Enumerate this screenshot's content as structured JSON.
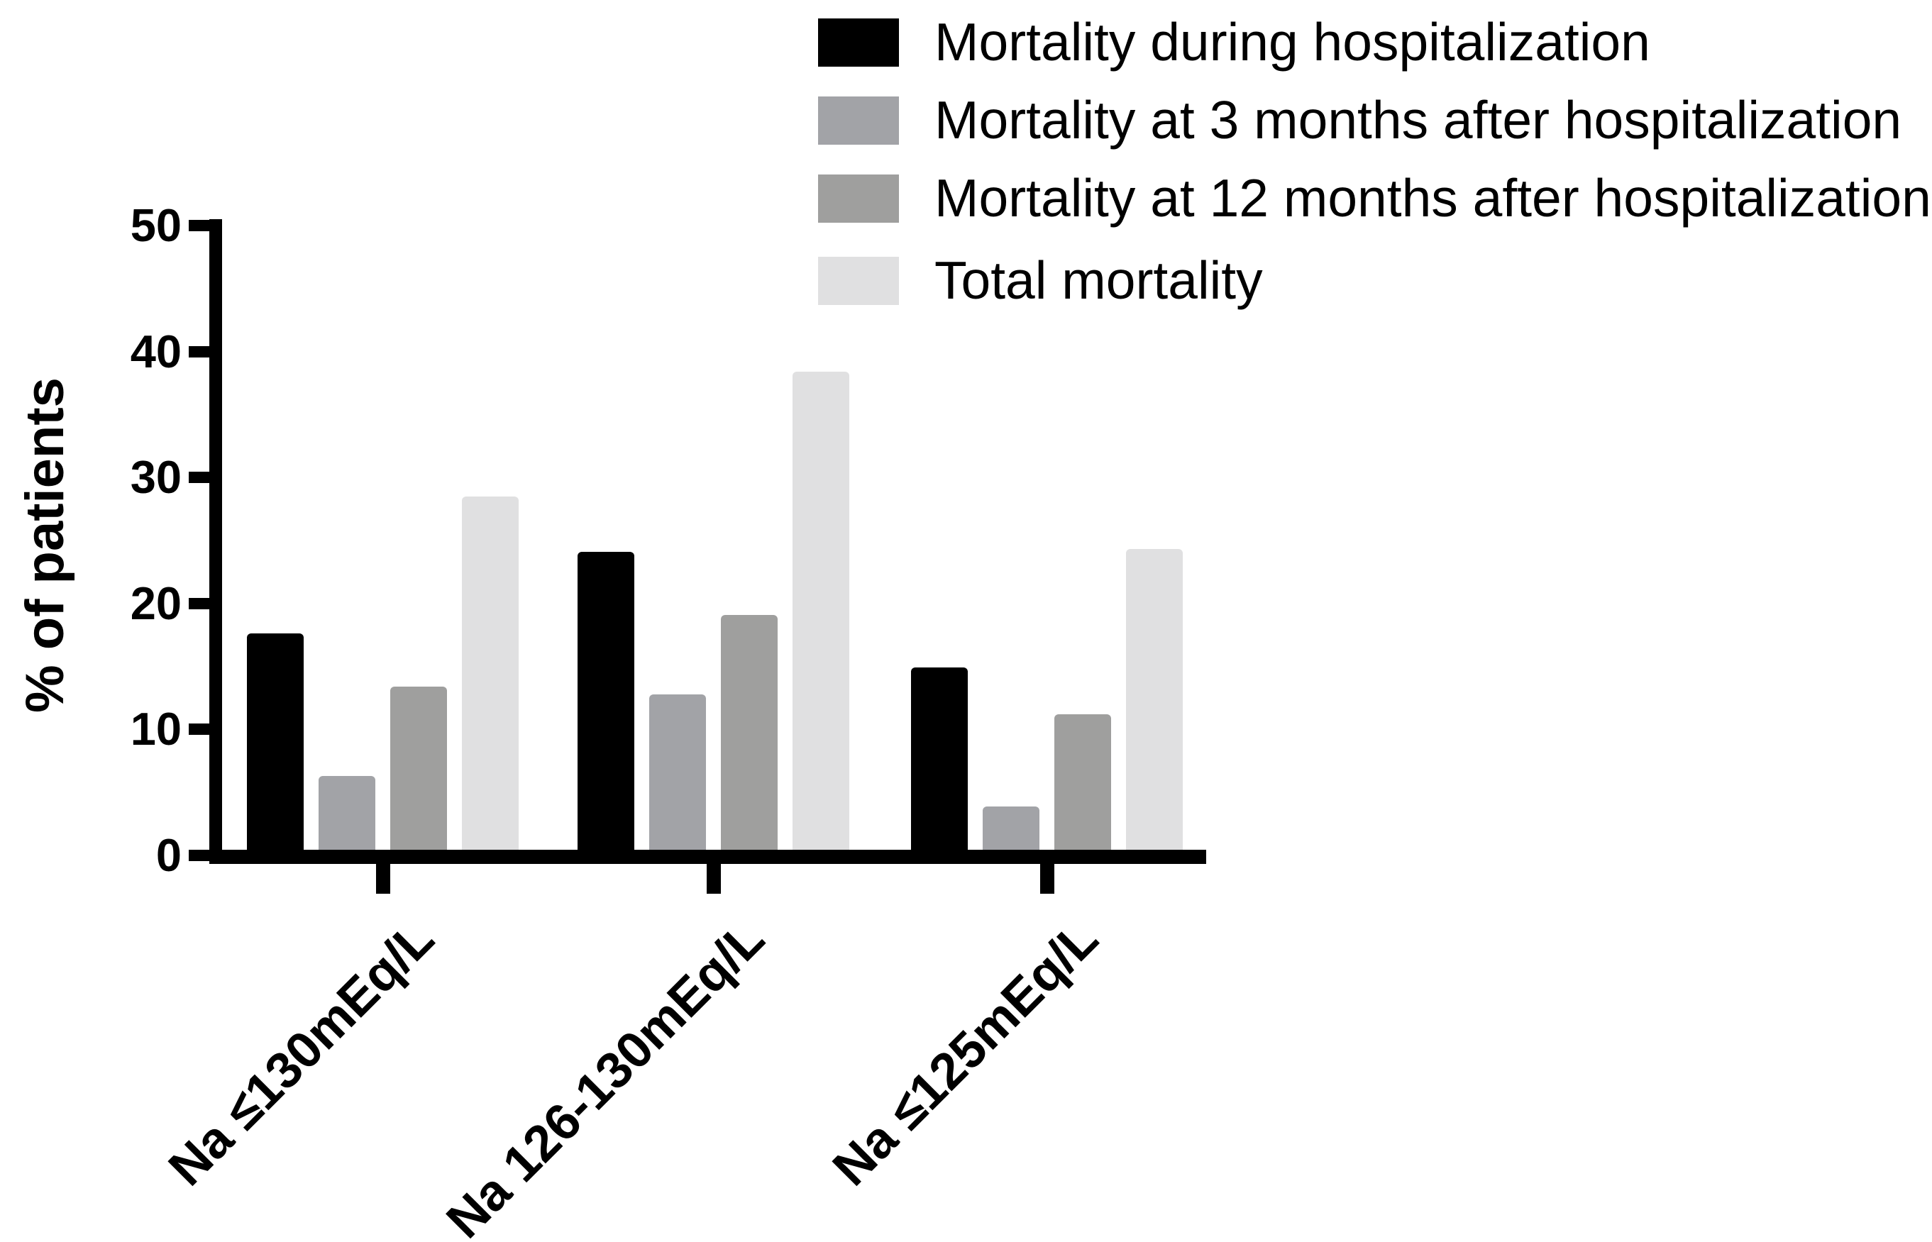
{
  "figure": {
    "background": "#ffffff",
    "text_color": "#000000"
  },
  "chart_data": {
    "type": "bar",
    "title": "",
    "xlabel": "",
    "ylabel": "% of patients",
    "categories": [
      "Na ≤130mEq/L",
      "Na 126-130mEq/L",
      "Na ≤125mEq/L"
    ],
    "series": [
      {
        "name": "Mortality during hospitalization",
        "color": "#000000",
        "values": [
          17.6,
          24.1,
          14.9
        ]
      },
      {
        "name": "Mortality at 3 months after hospitalization",
        "color": "#a2a3a7",
        "values": [
          6.3,
          12.8,
          3.9
        ]
      },
      {
        "name": "Mortality at 12 months after hospitalization",
        "color": "#9f9f9e",
        "values": [
          13.4,
          19.1,
          11.2
        ]
      },
      {
        "name": "Total mortality",
        "color": "#e0e0e1",
        "values": [
          28.5,
          38.4,
          24.3
        ]
      }
    ],
    "y_ticks": [
      0,
      10,
      20,
      30,
      40,
      50
    ],
    "ylim": [
      0,
      50
    ],
    "grid": false,
    "legend_position": "top-right",
    "axis_color": "#000000"
  }
}
